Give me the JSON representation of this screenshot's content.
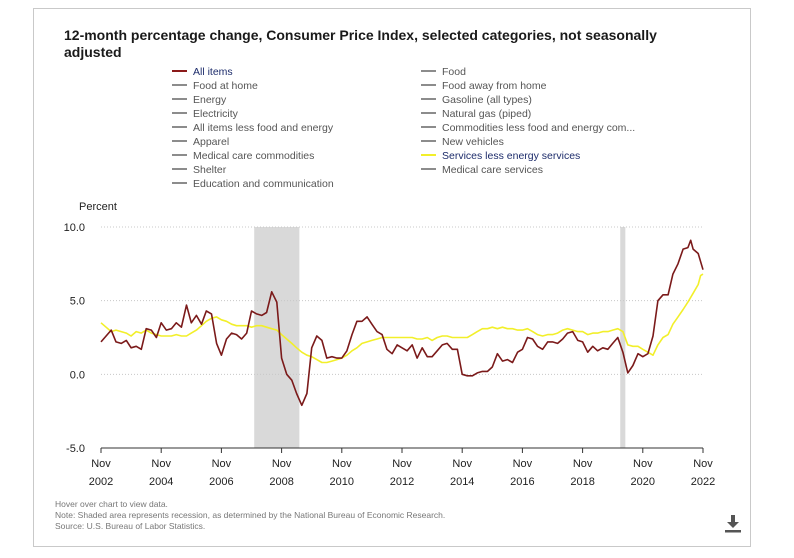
{
  "title": "12-month percentage change, Consumer Price Index, selected categories, not seasonally adjusted",
  "legend": {
    "left": [
      {
        "label": "All items",
        "color": "#8b1a1a",
        "active": true
      },
      {
        "label": "Food at home",
        "color": "#8c8c8c",
        "active": false
      },
      {
        "label": "Energy",
        "color": "#8c8c8c",
        "active": false
      },
      {
        "label": "Electricity",
        "color": "#8c8c8c",
        "active": false
      },
      {
        "label": "All items less food and energy",
        "color": "#8c8c8c",
        "active": false
      },
      {
        "label": "Apparel",
        "color": "#8c8c8c",
        "active": false
      },
      {
        "label": "Medical care commodities",
        "color": "#8c8c8c",
        "active": false
      },
      {
        "label": "Shelter",
        "color": "#8c8c8c",
        "active": false
      },
      {
        "label": "Education and communication",
        "color": "#8c8c8c",
        "active": false
      }
    ],
    "right": [
      {
        "label": "Food",
        "color": "#8c8c8c",
        "active": false
      },
      {
        "label": "Food away from home",
        "color": "#8c8c8c",
        "active": false
      },
      {
        "label": "Gasoline (all types)",
        "color": "#8c8c8c",
        "active": false
      },
      {
        "label": "Natural gas (piped)",
        "color": "#8c8c8c",
        "active": false
      },
      {
        "label": "Commodities less food and energy com...",
        "color": "#8c8c8c",
        "active": false
      },
      {
        "label": "New vehicles",
        "color": "#8c8c8c",
        "active": false
      },
      {
        "label": "Services less energy services",
        "color": "#f2ef2a",
        "active": true
      },
      {
        "label": "Medical care services",
        "color": "#8c8c8c",
        "active": false
      }
    ]
  },
  "notes": [
    "Hover over chart to view data.",
    "Note: Shaded area represents recession, as determined by the National Bureau of Economic Research.",
    "Source: U.S. Bureau of Labor Statistics."
  ],
  "chart_data": {
    "type": "line",
    "ylabel": "Percent",
    "ylim": [
      -5.0,
      10.0
    ],
    "yticks": [
      "10.0",
      "5.0",
      "0.0",
      "-5.0"
    ],
    "ytick_values": [
      10,
      5,
      0,
      -5
    ],
    "xlim": [
      2002.83,
      2022.83
    ],
    "xticks": [
      {
        "value": 2002.83,
        "line1": "Nov",
        "line2": "2002"
      },
      {
        "value": 2004.83,
        "line1": "Nov",
        "line2": "2004"
      },
      {
        "value": 2006.83,
        "line1": "Nov",
        "line2": "2006"
      },
      {
        "value": 2008.83,
        "line1": "Nov",
        "line2": "2008"
      },
      {
        "value": 2010.83,
        "line1": "Nov",
        "line2": "2010"
      },
      {
        "value": 2012.83,
        "line1": "Nov",
        "line2": "2012"
      },
      {
        "value": 2014.83,
        "line1": "Nov",
        "line2": "2014"
      },
      {
        "value": 2016.83,
        "line1": "Nov",
        "line2": "2016"
      },
      {
        "value": 2018.83,
        "line1": "Nov",
        "line2": "2018"
      },
      {
        "value": 2020.83,
        "line1": "Nov",
        "line2": "2020"
      },
      {
        "value": 2022.83,
        "line1": "Nov",
        "line2": "2022"
      }
    ],
    "grid": true,
    "recessions": [
      [
        2007.92,
        2009.42
      ],
      [
        2020.08,
        2020.25
      ]
    ],
    "series": [
      {
        "name": "All items",
        "color": "#7b1a1a",
        "points": [
          [
            2002.83,
            2.2
          ],
          [
            2003.0,
            2.6
          ],
          [
            2003.17,
            3.0
          ],
          [
            2003.33,
            2.2
          ],
          [
            2003.5,
            2.1
          ],
          [
            2003.67,
            2.3
          ],
          [
            2003.83,
            1.8
          ],
          [
            2004.0,
            1.9
          ],
          [
            2004.17,
            1.7
          ],
          [
            2004.33,
            3.1
          ],
          [
            2004.5,
            3.0
          ],
          [
            2004.67,
            2.5
          ],
          [
            2004.83,
            3.5
          ],
          [
            2005.0,
            3.0
          ],
          [
            2005.17,
            3.1
          ],
          [
            2005.33,
            3.5
          ],
          [
            2005.5,
            3.2
          ],
          [
            2005.67,
            4.7
          ],
          [
            2005.83,
            3.5
          ],
          [
            2006.0,
            4.0
          ],
          [
            2006.17,
            3.4
          ],
          [
            2006.33,
            4.3
          ],
          [
            2006.5,
            4.1
          ],
          [
            2006.67,
            2.1
          ],
          [
            2006.83,
            1.3
          ],
          [
            2007.0,
            2.4
          ],
          [
            2007.17,
            2.8
          ],
          [
            2007.33,
            2.7
          ],
          [
            2007.5,
            2.4
          ],
          [
            2007.67,
            2.8
          ],
          [
            2007.83,
            4.3
          ],
          [
            2008.0,
            4.1
          ],
          [
            2008.17,
            4.0
          ],
          [
            2008.33,
            4.2
          ],
          [
            2008.5,
            5.6
          ],
          [
            2008.67,
            4.9
          ],
          [
            2008.83,
            1.1
          ],
          [
            2009.0,
            0.0
          ],
          [
            2009.17,
            -0.4
          ],
          [
            2009.33,
            -1.3
          ],
          [
            2009.5,
            -2.1
          ],
          [
            2009.67,
            -1.3
          ],
          [
            2009.83,
            1.8
          ],
          [
            2010.0,
            2.6
          ],
          [
            2010.17,
            2.3
          ],
          [
            2010.33,
            1.1
          ],
          [
            2010.5,
            1.2
          ],
          [
            2010.67,
            1.1
          ],
          [
            2010.83,
            1.1
          ],
          [
            2011.0,
            1.6
          ],
          [
            2011.17,
            2.7
          ],
          [
            2011.33,
            3.6
          ],
          [
            2011.5,
            3.6
          ],
          [
            2011.67,
            3.9
          ],
          [
            2011.83,
            3.4
          ],
          [
            2012.0,
            2.9
          ],
          [
            2012.17,
            2.7
          ],
          [
            2012.33,
            1.7
          ],
          [
            2012.5,
            1.4
          ],
          [
            2012.67,
            2.0
          ],
          [
            2012.83,
            1.8
          ],
          [
            2013.0,
            1.6
          ],
          [
            2013.17,
            2.0
          ],
          [
            2013.33,
            1.1
          ],
          [
            2013.5,
            1.8
          ],
          [
            2013.67,
            1.2
          ],
          [
            2013.83,
            1.2
          ],
          [
            2014.0,
            1.6
          ],
          [
            2014.17,
            2.0
          ],
          [
            2014.33,
            2.1
          ],
          [
            2014.5,
            1.7
          ],
          [
            2014.67,
            1.7
          ],
          [
            2014.83,
            0.0
          ],
          [
            2015.0,
            -0.1
          ],
          [
            2015.17,
            -0.1
          ],
          [
            2015.33,
            0.1
          ],
          [
            2015.5,
            0.2
          ],
          [
            2015.67,
            0.2
          ],
          [
            2015.83,
            0.5
          ],
          [
            2016.0,
            1.4
          ],
          [
            2016.17,
            0.9
          ],
          [
            2016.33,
            1.0
          ],
          [
            2016.5,
            0.8
          ],
          [
            2016.67,
            1.5
          ],
          [
            2016.83,
            1.7
          ],
          [
            2017.0,
            2.5
          ],
          [
            2017.17,
            2.4
          ],
          [
            2017.33,
            1.9
          ],
          [
            2017.5,
            1.7
          ],
          [
            2017.67,
            2.2
          ],
          [
            2017.83,
            2.2
          ],
          [
            2018.0,
            2.1
          ],
          [
            2018.17,
            2.4
          ],
          [
            2018.33,
            2.8
          ],
          [
            2018.5,
            2.9
          ],
          [
            2018.67,
            2.3
          ],
          [
            2018.83,
            2.2
          ],
          [
            2019.0,
            1.5
          ],
          [
            2019.17,
            1.9
          ],
          [
            2019.33,
            1.6
          ],
          [
            2019.5,
            1.8
          ],
          [
            2019.67,
            1.7
          ],
          [
            2019.83,
            2.1
          ],
          [
            2020.0,
            2.5
          ],
          [
            2020.17,
            1.5
          ],
          [
            2020.33,
            0.1
          ],
          [
            2020.5,
            0.6
          ],
          [
            2020.67,
            1.4
          ],
          [
            2020.83,
            1.2
          ],
          [
            2021.0,
            1.4
          ],
          [
            2021.17,
            2.6
          ],
          [
            2021.33,
            5.0
          ],
          [
            2021.5,
            5.4
          ],
          [
            2021.67,
            5.4
          ],
          [
            2021.83,
            6.8
          ],
          [
            2022.0,
            7.5
          ],
          [
            2022.17,
            8.5
          ],
          [
            2022.33,
            8.6
          ],
          [
            2022.42,
            9.1
          ],
          [
            2022.5,
            8.5
          ],
          [
            2022.67,
            8.2
          ],
          [
            2022.83,
            7.1
          ]
        ]
      },
      {
        "name": "Services less energy services",
        "color": "#f2ef2a",
        "points": [
          [
            2002.83,
            3.5
          ],
          [
            2003.0,
            3.2
          ],
          [
            2003.17,
            2.9
          ],
          [
            2003.33,
            3.0
          ],
          [
            2003.5,
            2.9
          ],
          [
            2003.67,
            2.8
          ],
          [
            2003.83,
            2.6
          ],
          [
            2004.0,
            2.9
          ],
          [
            2004.17,
            2.8
          ],
          [
            2004.33,
            3.0
          ],
          [
            2004.5,
            2.8
          ],
          [
            2004.67,
            2.7
          ],
          [
            2004.83,
            2.6
          ],
          [
            2005.0,
            2.6
          ],
          [
            2005.17,
            2.6
          ],
          [
            2005.33,
            2.7
          ],
          [
            2005.5,
            2.6
          ],
          [
            2005.67,
            2.6
          ],
          [
            2005.83,
            2.8
          ],
          [
            2006.0,
            3.0
          ],
          [
            2006.17,
            3.3
          ],
          [
            2006.33,
            3.6
          ],
          [
            2006.5,
            3.8
          ],
          [
            2006.67,
            3.9
          ],
          [
            2006.83,
            3.7
          ],
          [
            2007.0,
            3.6
          ],
          [
            2007.17,
            3.4
          ],
          [
            2007.33,
            3.3
          ],
          [
            2007.5,
            3.3
          ],
          [
            2007.67,
            3.3
          ],
          [
            2007.83,
            3.2
          ],
          [
            2008.0,
            3.3
          ],
          [
            2008.17,
            3.3
          ],
          [
            2008.33,
            3.2
          ],
          [
            2008.5,
            3.1
          ],
          [
            2008.67,
            3.0
          ],
          [
            2008.83,
            2.7
          ],
          [
            2009.0,
            2.4
          ],
          [
            2009.17,
            2.1
          ],
          [
            2009.33,
            1.8
          ],
          [
            2009.5,
            1.5
          ],
          [
            2009.67,
            1.3
          ],
          [
            2009.83,
            1.2
          ],
          [
            2010.0,
            1.0
          ],
          [
            2010.17,
            0.8
          ],
          [
            2010.33,
            0.8
          ],
          [
            2010.5,
            0.9
          ],
          [
            2010.67,
            1.0
          ],
          [
            2010.83,
            1.1
          ],
          [
            2011.0,
            1.3
          ],
          [
            2011.17,
            1.6
          ],
          [
            2011.33,
            1.8
          ],
          [
            2011.5,
            2.1
          ],
          [
            2011.67,
            2.2
          ],
          [
            2011.83,
            2.3
          ],
          [
            2012.0,
            2.4
          ],
          [
            2012.17,
            2.5
          ],
          [
            2012.33,
            2.5
          ],
          [
            2012.5,
            2.5
          ],
          [
            2012.67,
            2.5
          ],
          [
            2012.83,
            2.5
          ],
          [
            2013.0,
            2.5
          ],
          [
            2013.17,
            2.5
          ],
          [
            2013.33,
            2.4
          ],
          [
            2013.5,
            2.4
          ],
          [
            2013.67,
            2.5
          ],
          [
            2013.83,
            2.3
          ],
          [
            2014.0,
            2.5
          ],
          [
            2014.17,
            2.6
          ],
          [
            2014.33,
            2.6
          ],
          [
            2014.5,
            2.5
          ],
          [
            2014.67,
            2.5
          ],
          [
            2014.83,
            2.5
          ],
          [
            2015.0,
            2.5
          ],
          [
            2015.17,
            2.7
          ],
          [
            2015.33,
            2.9
          ],
          [
            2015.5,
            3.1
          ],
          [
            2015.67,
            3.1
          ],
          [
            2015.83,
            3.2
          ],
          [
            2016.0,
            3.1
          ],
          [
            2016.17,
            3.2
          ],
          [
            2016.33,
            3.1
          ],
          [
            2016.5,
            3.1
          ],
          [
            2016.67,
            3.0
          ],
          [
            2016.83,
            3.0
          ],
          [
            2017.0,
            3.1
          ],
          [
            2017.17,
            2.9
          ],
          [
            2017.33,
            2.7
          ],
          [
            2017.5,
            2.6
          ],
          [
            2017.67,
            2.7
          ],
          [
            2017.83,
            2.7
          ],
          [
            2018.0,
            2.8
          ],
          [
            2018.17,
            3.0
          ],
          [
            2018.33,
            3.1
          ],
          [
            2018.5,
            3.0
          ],
          [
            2018.67,
            2.9
          ],
          [
            2018.83,
            2.9
          ],
          [
            2019.0,
            2.7
          ],
          [
            2019.17,
            2.8
          ],
          [
            2019.33,
            2.8
          ],
          [
            2019.5,
            2.9
          ],
          [
            2019.67,
            2.9
          ],
          [
            2019.83,
            3.0
          ],
          [
            2020.0,
            3.1
          ],
          [
            2020.17,
            2.9
          ],
          [
            2020.33,
            2.0
          ],
          [
            2020.5,
            1.9
          ],
          [
            2020.67,
            1.9
          ],
          [
            2020.83,
            1.7
          ],
          [
            2021.0,
            1.5
          ],
          [
            2021.17,
            1.3
          ],
          [
            2021.33,
            2.0
          ],
          [
            2021.5,
            2.5
          ],
          [
            2021.67,
            2.7
          ],
          [
            2021.83,
            3.4
          ],
          [
            2022.0,
            3.9
          ],
          [
            2022.17,
            4.4
          ],
          [
            2022.33,
            4.9
          ],
          [
            2022.5,
            5.5
          ],
          [
            2022.67,
            6.1
          ],
          [
            2022.75,
            6.7
          ],
          [
            2022.83,
            6.8
          ]
        ]
      }
    ]
  }
}
